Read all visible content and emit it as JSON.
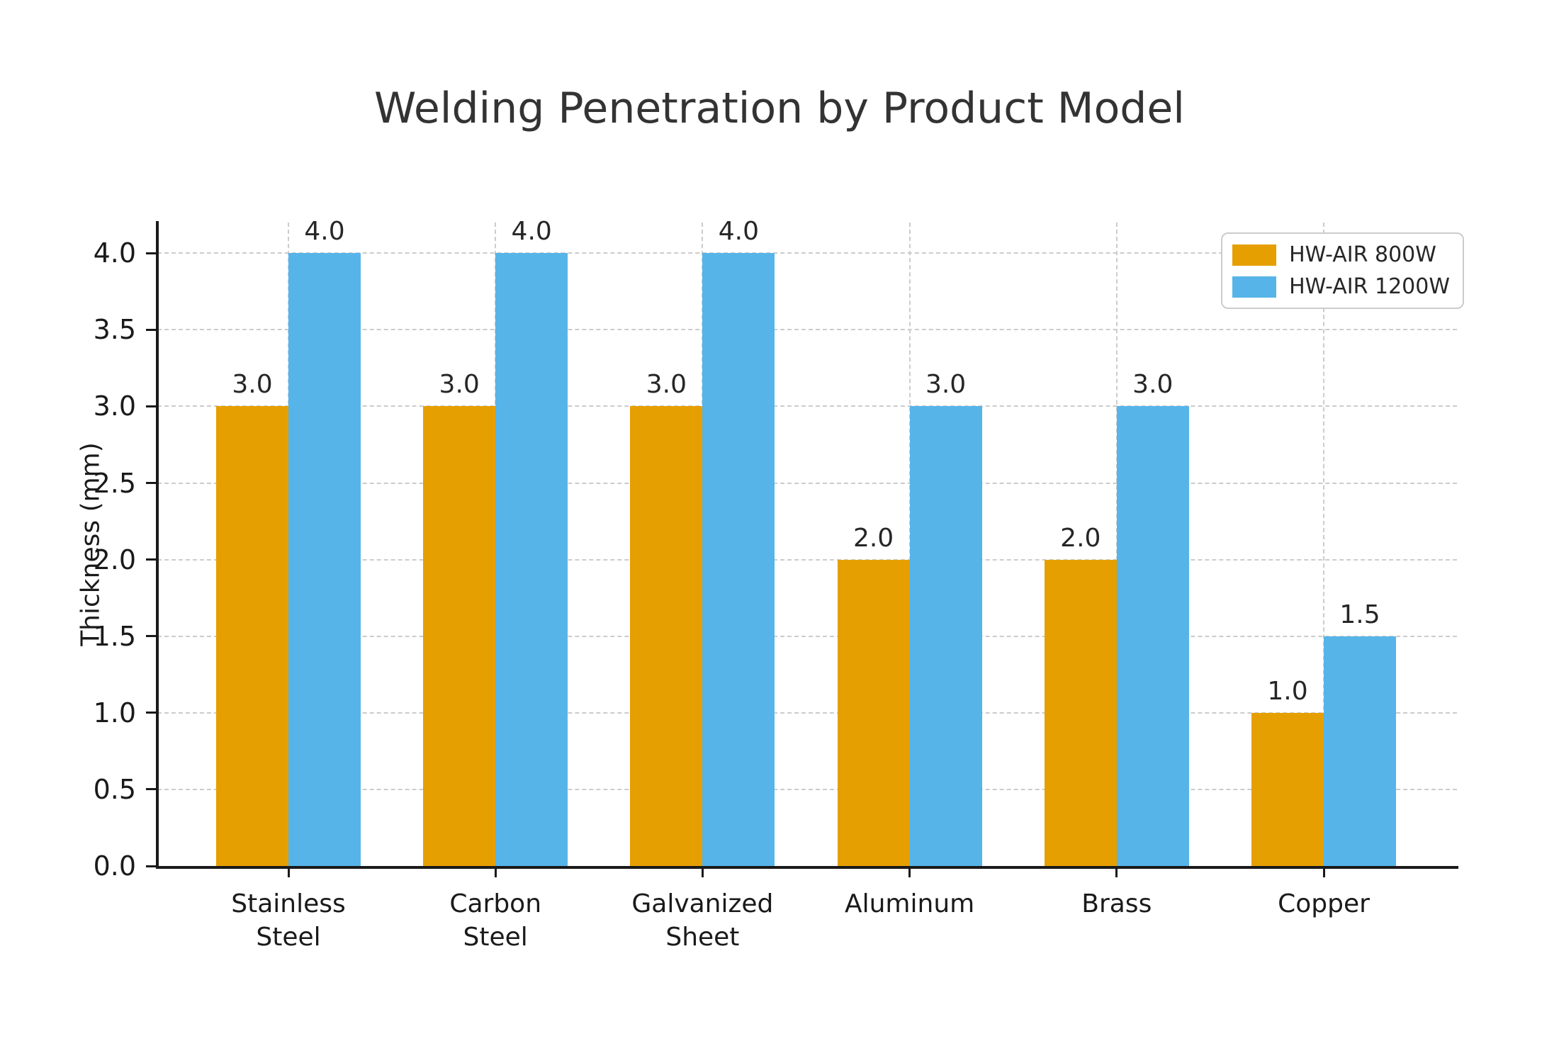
{
  "chart_data": {
    "type": "bar",
    "title": "Welding Penetration by Product Model",
    "ylabel": "Thickness (mm)",
    "xlabel": "",
    "categories": [
      "Stainless\nSteel",
      "Carbon\nSteel",
      "Galvanized\nSheet",
      "Aluminum",
      "Brass",
      "Copper"
    ],
    "series": [
      {
        "name": "HW-AIR 800W",
        "color": "#E69F00",
        "values": [
          3.0,
          3.0,
          3.0,
          2.0,
          2.0,
          1.0
        ],
        "labels": [
          "3.0",
          "3.0",
          "3.0",
          "2.0",
          "2.0",
          "1.0"
        ]
      },
      {
        "name": "HW-AIR 1200W",
        "color": "#56B4E9",
        "values": [
          4.0,
          4.0,
          4.0,
          3.0,
          3.0,
          1.5
        ],
        "labels": [
          "4.0",
          "4.0",
          "4.0",
          "3.0",
          "3.0",
          "1.5"
        ]
      }
    ],
    "yticks": [
      "0.0",
      "0.5",
      "1.0",
      "1.5",
      "2.0",
      "2.5",
      "3.0",
      "3.5",
      "4.0"
    ],
    "ylim": [
      0,
      4.2
    ],
    "grid": {
      "axis": "both",
      "style": "dashed",
      "color": "#cccccc"
    },
    "legend": {
      "position": "upper-right",
      "entries": [
        "HW-AIR 800W",
        "HW-AIR 1200W"
      ]
    },
    "colors": {
      "axis": "#1a1a1a",
      "title_text": "#333333",
      "label_text": "#262626",
      "background": "#ffffff"
    }
  }
}
